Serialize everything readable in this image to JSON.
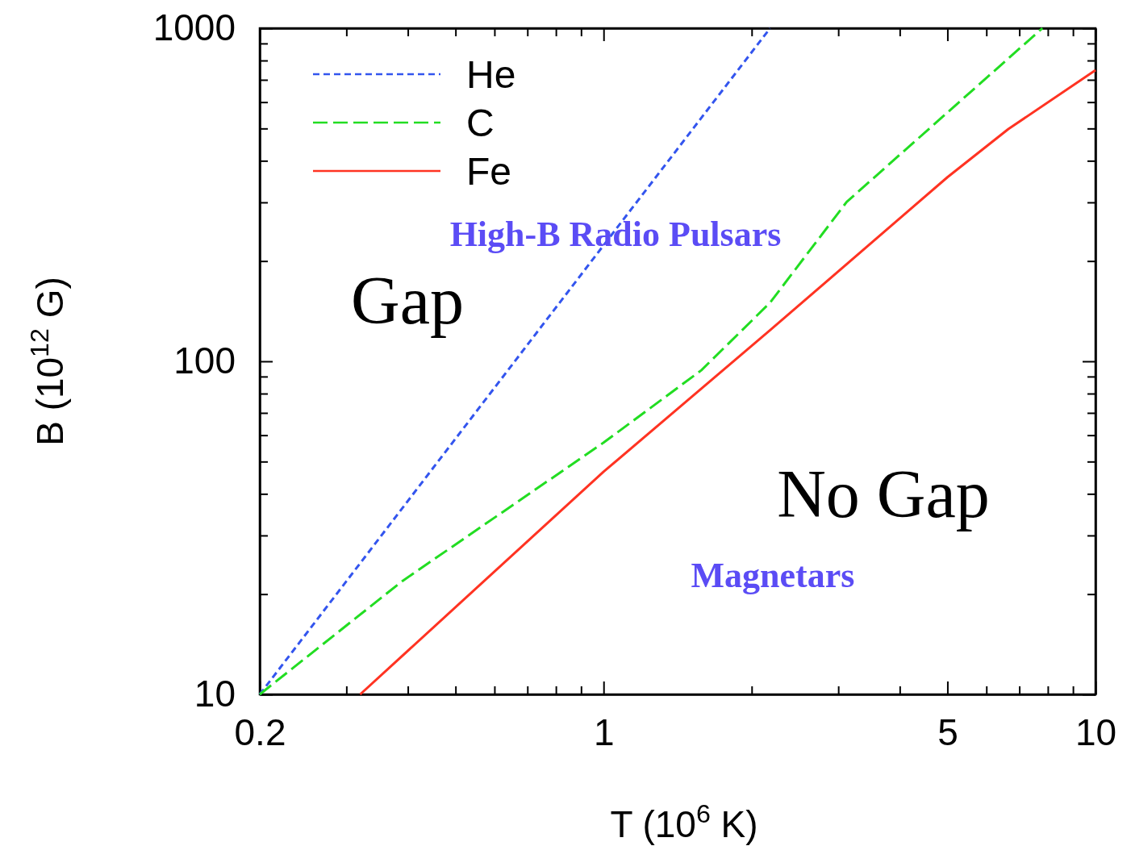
{
  "chart_data": {
    "type": "line",
    "xlabel": "T (10$^{6}$ K)",
    "ylabel": "B (10$^{12}$ G)",
    "log": "xy",
    "xlim": [
      0.2,
      10
    ],
    "ylim": [
      10,
      1000
    ],
    "xticks": [
      0.2,
      {
        "value": 0.3,
        "label": null
      },
      {
        "value": 0.4,
        "label": null
      },
      {
        "value": 0.5,
        "label": null
      },
      {
        "value": 0.6,
        "label": null
      },
      {
        "value": 0.7,
        "label": null
      },
      {
        "value": 0.8,
        "label": null
      },
      {
        "value": 0.9,
        "label": null
      },
      1,
      {
        "value": 2,
        "label": null
      },
      {
        "value": 3,
        "label": null
      },
      {
        "value": 4,
        "label": null
      },
      5,
      {
        "value": 6,
        "label": null
      },
      {
        "value": 7,
        "label": null
      },
      {
        "value": 8,
        "label": null
      },
      {
        "value": 9,
        "label": null
      },
      10
    ],
    "yticks": [
      10,
      {
        "value": 20,
        "label": null
      },
      {
        "value": 30,
        "label": null
      },
      {
        "value": 40,
        "label": null
      },
      {
        "value": 50,
        "label": null
      },
      {
        "value": 60,
        "label": null
      },
      {
        "value": 70,
        "label": null
      },
      {
        "value": 80,
        "label": null
      },
      {
        "value": 90,
        "label": null
      },
      100,
      {
        "value": 200,
        "label": null
      },
      {
        "value": 300,
        "label": null
      },
      {
        "value": 400,
        "label": null
      },
      {
        "value": 500,
        "label": null
      },
      {
        "value": 600,
        "label": null
      },
      {
        "value": 700,
        "label": null
      },
      {
        "value": 800,
        "label": null
      },
      {
        "value": 900,
        "label": null
      },
      1000
    ],
    "legend": "top left",
    "grid": false,
    "series": [
      {
        "name": "He",
        "color": "#3355ee",
        "line_style": "dotted",
        "x": [
          0.2,
          1,
          2.18
        ],
        "values": [
          10,
          223,
          1000
        ]
      },
      {
        "name": "C",
        "color": "#22dd22",
        "line_style": "dashed",
        "x": [
          0.2,
          0.39,
          1,
          1.58,
          2.18,
          3.12,
          7.8
        ],
        "values": [
          10,
          21.9,
          57,
          94,
          150,
          301,
          1000
        ]
      },
      {
        "name": "Fe",
        "color": "#ff3322",
        "line_style": "solid",
        "x": [
          0.32,
          1,
          2.18,
          5,
          6.65,
          10
        ],
        "values": [
          10,
          46.6,
          124,
          357,
          498,
          748
        ]
      }
    ],
    "annotations": [
      "Gap",
      "No Gap",
      "High-B Radio Pulsars",
      "Magnetars"
    ]
  }
}
